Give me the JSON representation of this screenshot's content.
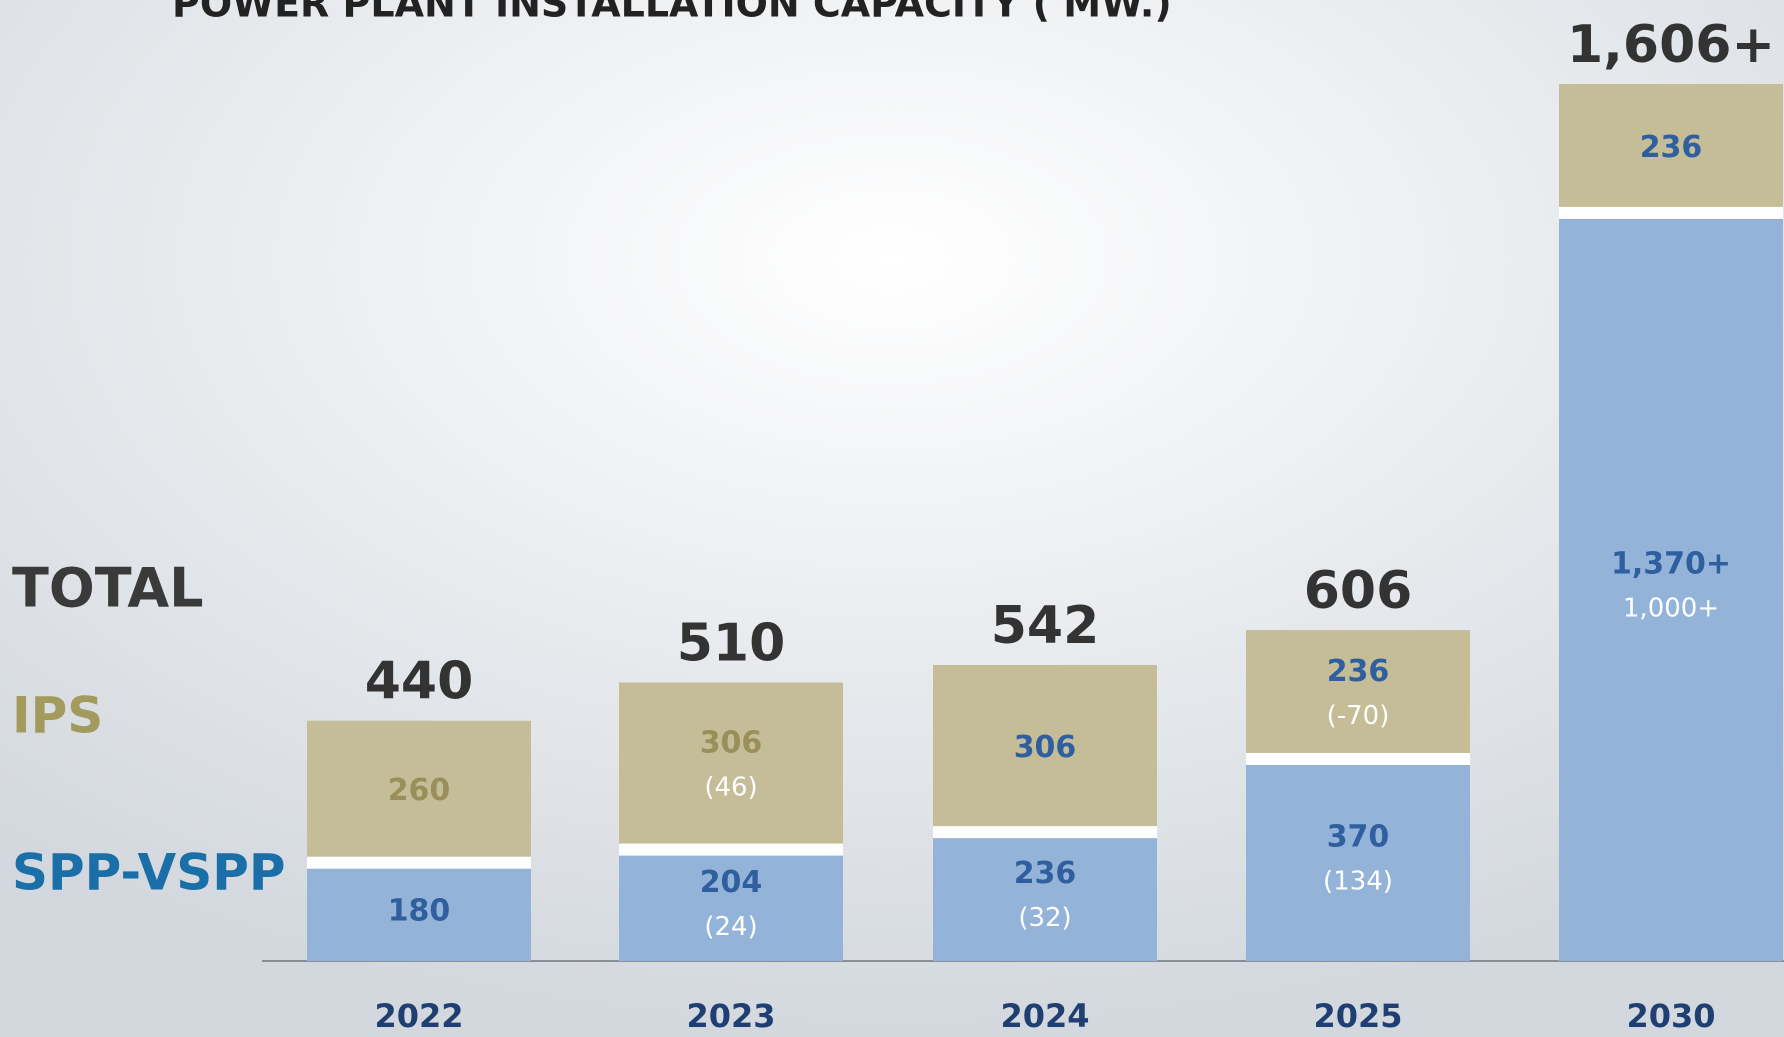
{
  "chart_data": {
    "type": "stacked_bar",
    "title": "POWER PLANT INSTALLATION CAPACITY ( MW.)",
    "categories": [
      "2022",
      "2023",
      "2024",
      "2025",
      "2030"
    ],
    "series": [
      {
        "name": "SPP-VSPP",
        "color": "#94b3d9",
        "values": [
          180,
          204,
          236,
          370,
          1370
        ],
        "value_labels": [
          "180",
          "204",
          "236",
          "370",
          "1,370+"
        ],
        "notes": [
          null,
          "(24)",
          "(32)",
          "(134)",
          "1,000+"
        ]
      },
      {
        "name": "IPS",
        "color": "#c5bd98",
        "values": [
          260,
          306,
          306,
          236,
          236
        ],
        "value_labels": [
          "260",
          "306",
          "306",
          "236",
          "236"
        ],
        "notes": [
          null,
          "(46)",
          null,
          "(-70)",
          null
        ]
      }
    ],
    "total_label": "TOTAL",
    "totals": [
      440,
      510,
      542,
      606,
      1606
    ],
    "total_labels": [
      "440",
      "510",
      "542",
      "606",
      "1,606+"
    ],
    "ylim": [
      0,
      1650
    ]
  }
}
